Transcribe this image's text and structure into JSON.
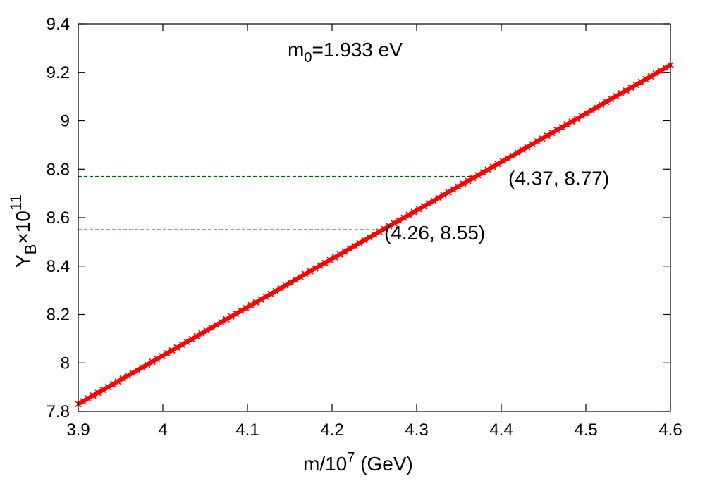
{
  "chart_data": {
    "type": "line",
    "title": "",
    "inset_label": {
      "base": "m",
      "sub": "0",
      "rest": "=1.933 eV"
    },
    "xlabel": {
      "base": "m/10",
      "sup": "7",
      "rest": " (GeV)"
    },
    "ylabel": {
      "base": "Y",
      "sub": "B",
      "mid": "×10",
      "sup": "11"
    },
    "xlim": [
      3.9,
      4.6
    ],
    "ylim": [
      7.8,
      9.4
    ],
    "xticks": [
      3.9,
      4.0,
      4.1,
      4.2,
      4.3,
      4.4,
      4.5,
      4.6
    ],
    "xtick_labels": [
      "3.9",
      "4",
      "4.1",
      "4.2",
      "4.3",
      "4.4",
      "4.5",
      "4.6"
    ],
    "yticks": [
      7.8,
      8.0,
      8.2,
      8.4,
      8.6,
      8.8,
      9.0,
      9.2,
      9.4
    ],
    "ytick_labels": [
      "7.8",
      "8",
      "8.2",
      "8.4",
      "8.6",
      "8.8",
      "9",
      "9.2",
      "9.4"
    ],
    "grid": false,
    "series": [
      {
        "x": [
          3.9,
          4.6
        ],
        "y": [
          7.83,
          9.23
        ],
        "color": "#ff0000"
      }
    ],
    "reference_lines": [
      {
        "x": 4.37,
        "y": 8.77,
        "label": "(4.37, 8.77)",
        "color": "#006400"
      },
      {
        "x": 4.26,
        "y": 8.55,
        "label": "(4.26, 8.55)",
        "color": "#006400"
      }
    ]
  }
}
